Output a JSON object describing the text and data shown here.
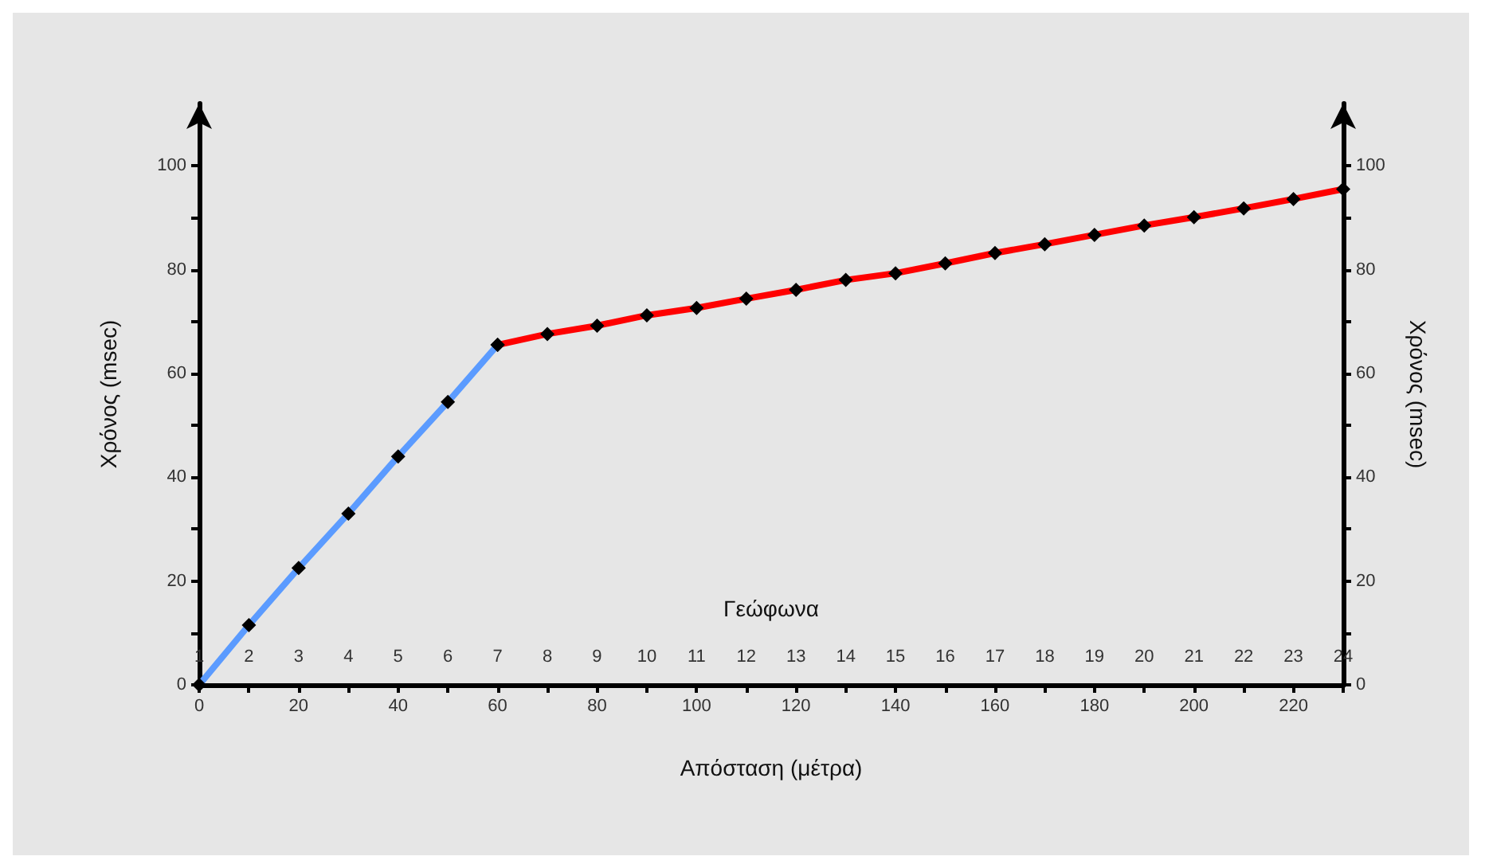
{
  "chart_data": {
    "type": "line",
    "xlabel": "Απόσταση (μέτρα)",
    "ylabel": "Χρόνος (msec)",
    "y2label": "Χρόνος (msec)",
    "x2label": "Γεώφωνα",
    "xlim": [
      0,
      230
    ],
    "xticks": [
      0,
      {
        "value": 10,
        "label": null
      },
      20,
      {
        "value": 30,
        "label": null
      },
      40,
      {
        "value": 50,
        "label": null
      },
      60,
      {
        "value": 70,
        "label": null
      },
      80,
      {
        "value": 90,
        "label": null
      },
      100,
      {
        "value": 110,
        "label": null
      },
      120,
      {
        "value": 130,
        "label": null
      },
      140,
      {
        "value": 150,
        "label": null
      },
      160,
      {
        "value": 170,
        "label": null
      },
      180,
      {
        "value": 190,
        "label": null
      },
      200,
      {
        "value": 210,
        "label": null
      },
      220,
      {
        "value": 230,
        "label": null
      }
    ],
    "x2lim": [
      1,
      24
    ],
    "x2ticks": [
      1,
      2,
      3,
      4,
      5,
      6,
      7,
      8,
      9,
      10,
      11,
      12,
      13,
      14,
      15,
      16,
      17,
      18,
      19,
      20,
      21,
      22,
      23,
      24
    ],
    "ylim": [
      0,
      112
    ],
    "yticks": [
      0,
      {
        "value": 10,
        "label": null
      },
      20,
      {
        "value": 30,
        "label": null
      },
      40,
      {
        "value": 50,
        "label": null
      },
      60,
      {
        "value": 70,
        "label": null
      },
      80,
      {
        "value": 90,
        "label": null
      },
      100
    ],
    "y2lim": [
      0,
      112
    ],
    "y2ticks": [
      0,
      {
        "value": 10,
        "label": null
      },
      20,
      {
        "value": 30,
        "label": null
      },
      40,
      {
        "value": 50,
        "label": null
      },
      60,
      {
        "value": 70,
        "label": null
      },
      80,
      {
        "value": 90,
        "label": null
      },
      100
    ],
    "grid": false,
    "marker": "diamond",
    "line_style": "solid",
    "series": [
      {
        "color": "#5b9bff",
        "x": [
          0,
          10,
          20,
          30,
          40,
          50,
          60
        ],
        "values": [
          0,
          11.5,
          22.5,
          33,
          44,
          54.5,
          65.5
        ]
      },
      {
        "color": "#ff0000",
        "x": [
          60,
          70,
          80,
          90,
          100,
          110,
          120,
          130,
          140,
          150,
          160,
          170,
          180,
          190,
          200,
          210,
          220,
          230
        ],
        "values": [
          65.5,
          67.6,
          69.2,
          71.2,
          72.6,
          74.4,
          76.1,
          78,
          79.3,
          81.2,
          83.2,
          84.9,
          86.7,
          88.5,
          90.1,
          91.8,
          93.6,
          95.5
        ]
      }
    ]
  }
}
